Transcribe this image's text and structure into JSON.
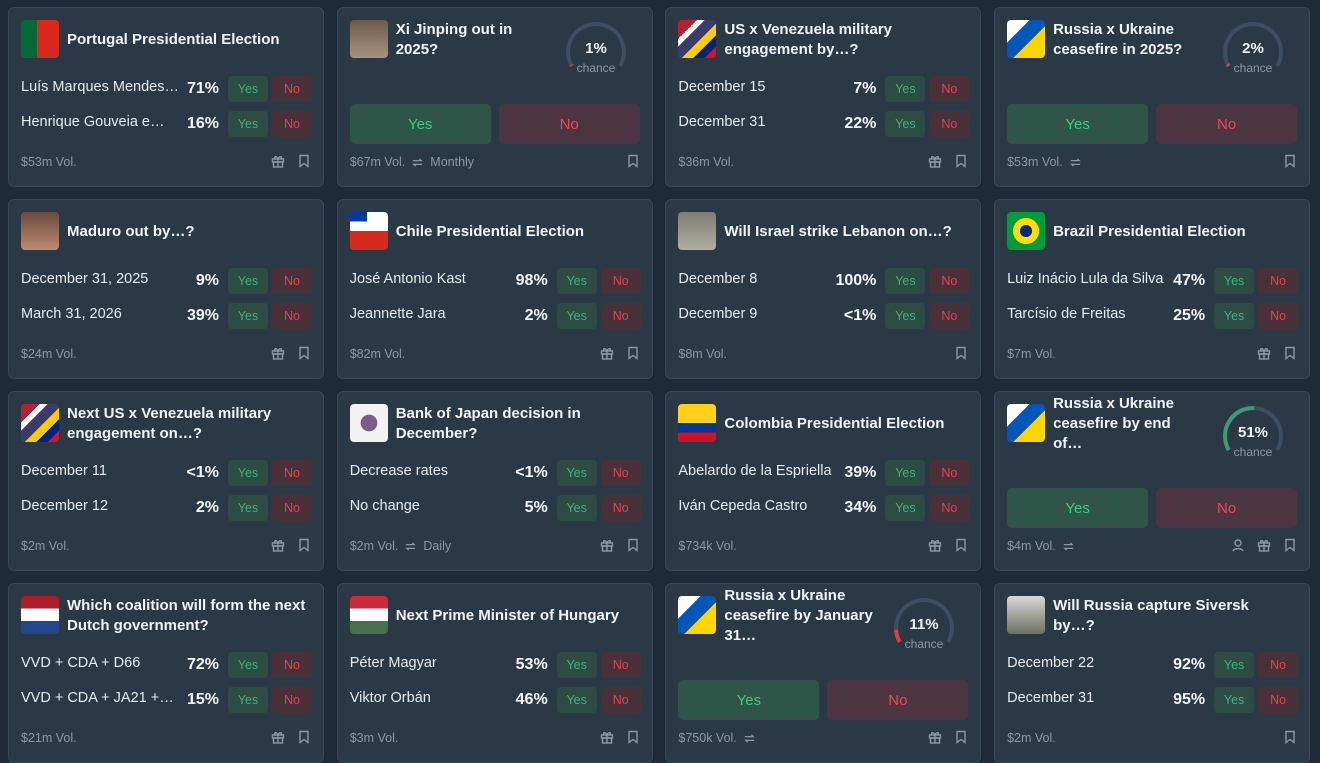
{
  "cards": [
    {
      "title": "Portugal Presidential Election",
      "outcomes": [
        {
          "label": "Luís Marques Mendes…",
          "chance": "71%"
        },
        {
          "label": "Henrique Gouveia e…",
          "chance": "16%"
        }
      ],
      "yes_label": "Yes",
      "no_label": "No",
      "volume": "$53m Vol."
    },
    {
      "title": "Xi Jinping out in 2025?",
      "chance": {
        "value": 1,
        "label": "1%"
      },
      "chance_caption": "chance",
      "yes_label": "Yes",
      "no_label": "No",
      "volume": "$67m Vol.",
      "recurrence": "Monthly"
    },
    {
      "title": "US x Venezuela military engagement by…?",
      "outcomes": [
        {
          "label": "December 15",
          "chance": "7%"
        },
        {
          "label": "December 31",
          "chance": "22%"
        }
      ],
      "yes_label": "Yes",
      "no_label": "No",
      "volume": "$36m Vol."
    },
    {
      "title": "Russia x Ukraine ceasefire in 2025?",
      "chance": {
        "value": 2,
        "label": "2%"
      },
      "chance_caption": "chance",
      "yes_label": "Yes",
      "no_label": "No",
      "volume": "$53m Vol."
    },
    {
      "title": "Maduro out by…?",
      "outcomes": [
        {
          "label": "December 31, 2025",
          "chance": "9%"
        },
        {
          "label": "March 31, 2026",
          "chance": "39%"
        }
      ],
      "yes_label": "Yes",
      "no_label": "No",
      "volume": "$24m Vol."
    },
    {
      "title": "Chile Presidential Election",
      "outcomes": [
        {
          "label": "José Antonio Kast",
          "chance": "98%"
        },
        {
          "label": "Jeannette Jara",
          "chance": "2%"
        }
      ],
      "yes_label": "Yes",
      "no_label": "No",
      "volume": "$82m Vol."
    },
    {
      "title": "Will Israel strike Lebanon on…?",
      "outcomes": [
        {
          "label": "December 8",
          "chance": "100%"
        },
        {
          "label": "December 9",
          "chance": "<1%"
        }
      ],
      "yes_label": "Yes",
      "no_label": "No",
      "volume": "$8m Vol."
    },
    {
      "title": "Brazil Presidential Election",
      "outcomes": [
        {
          "label": "Luiz Inácio Lula da Silva",
          "chance": "47%"
        },
        {
          "label": "Tarcísio de Freitas",
          "chance": "25%"
        }
      ],
      "yes_label": "Yes",
      "no_label": "No",
      "volume": "$7m Vol."
    },
    {
      "title": "Next US x Venezuela military engagement on…?",
      "outcomes": [
        {
          "label": "December 11",
          "chance": "<1%"
        },
        {
          "label": "December 12",
          "chance": "2%"
        }
      ],
      "yes_label": "Yes",
      "no_label": "No",
      "volume": "$2m Vol."
    },
    {
      "title": "Bank of Japan decision in December?",
      "outcomes": [
        {
          "label": "Decrease rates",
          "chance": "<1%"
        },
        {
          "label": "No change",
          "chance": "5%"
        }
      ],
      "yes_label": "Yes",
      "no_label": "No",
      "volume": "$2m Vol.",
      "recurrence": "Daily"
    },
    {
      "title": "Colombia Presidential Election",
      "outcomes": [
        {
          "label": "Abelardo de la Espriella",
          "chance": "39%"
        },
        {
          "label": "Iván Cepeda Castro",
          "chance": "34%"
        }
      ],
      "yes_label": "Yes",
      "no_label": "No",
      "volume": "$734k Vol."
    },
    {
      "title": "Russia x Ukraine ceasefire by end of…",
      "chance": {
        "value": 51,
        "label": "51%"
      },
      "chance_caption": "chance",
      "yes_label": "Yes",
      "no_label": "No",
      "volume": "$4m Vol."
    },
    {
      "title": "Which coalition will form the next Dutch government?",
      "outcomes": [
        {
          "label": "VVD + CDA + D66",
          "chance": "72%"
        },
        {
          "label": "VVD + CDA + JA21 +…",
          "chance": "15%"
        }
      ],
      "yes_label": "Yes",
      "no_label": "No",
      "volume": "$21m Vol."
    },
    {
      "title": "Next Prime Minister of Hungary",
      "outcomes": [
        {
          "label": "Péter Magyar",
          "chance": "53%"
        },
        {
          "label": "Viktor Orbán",
          "chance": "46%"
        }
      ],
      "yes_label": "Yes",
      "no_label": "No",
      "volume": "$3m Vol."
    },
    {
      "title": "Russia x Ukraine ceasefire by January 31…",
      "chance": {
        "value": 11,
        "label": "11%"
      },
      "chance_caption": "chance",
      "yes_label": "Yes",
      "no_label": "No",
      "volume": "$750k Vol."
    },
    {
      "title": "Will Russia capture Siversk by…?",
      "outcomes": [
        {
          "label": "December 22",
          "chance": "92%"
        },
        {
          "label": "December 31",
          "chance": "95%"
        }
      ],
      "yes_label": "Yes",
      "no_label": "No",
      "volume": "$2m Vol."
    }
  ]
}
